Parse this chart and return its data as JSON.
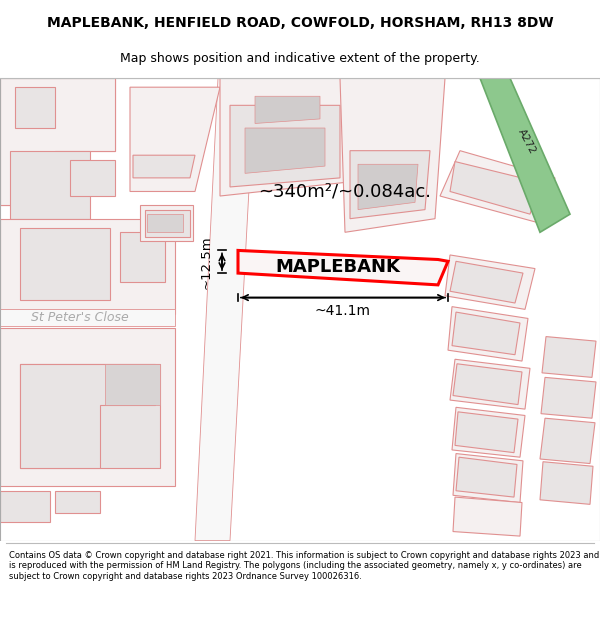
{
  "title": "MAPLEBANK, HENFIELD ROAD, COWFOLD, HORSHAM, RH13 8DW",
  "subtitle": "Map shows position and indicative extent of the property.",
  "footer": "Contains OS data © Crown copyright and database right 2021. This information is subject to Crown copyright and database rights 2023 and is reproduced with the permission of HM Land Registry. The polygons (including the associated geometry, namely x, y co-ordinates) are subject to Crown copyright and database rights 2023 Ordnance Survey 100026316.",
  "map_bg": "#ffffff",
  "building_fill": "#e8e4e4",
  "building_edge": "#e09090",
  "plot_fill": "#f5f0f0",
  "plot_edge": "#e09090",
  "highlight_fill": "#faf5f5",
  "highlight_edge": "#ff0000",
  "green_road_fill": "#8dc88d",
  "green_road_edge": "#6aaa6a",
  "road_label_color": "#333333",
  "area_text": "~340m²/~0.084ac.",
  "width_text": "~41.1m",
  "height_text": "~12.5m",
  "property_label": "MAPLEBANK",
  "street_label": "St Peter's Close",
  "road_label": "A272",
  "title_fontsize": 10,
  "subtitle_fontsize": 9,
  "footer_fontsize": 6.0
}
